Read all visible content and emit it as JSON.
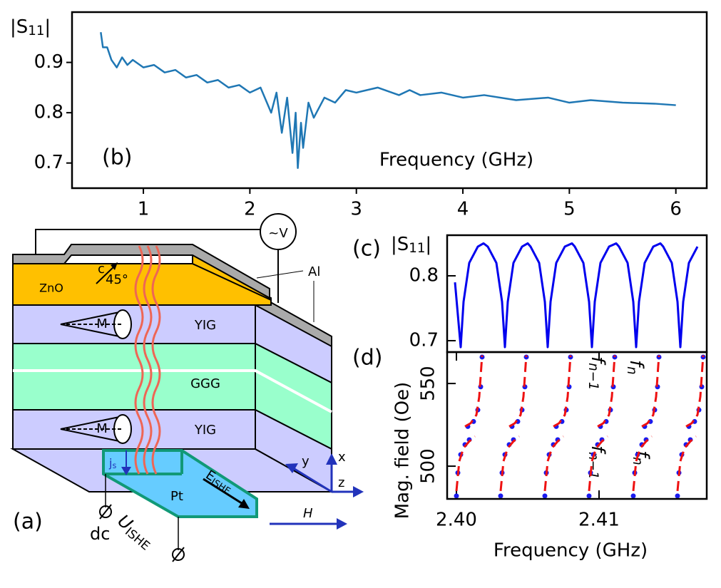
{
  "chart_data": [
    {
      "type": "line",
      "panel_label": "(b)",
      "xlabel": "Frequency (GHz)",
      "ylabel": {
        "text": "|S",
        "sub": "11",
        "tail": "|"
      },
      "color": "#1f77b4",
      "xlim": [
        0.33,
        6.29
      ],
      "ylim": [
        0.65,
        1.0
      ],
      "xticks": [
        1,
        2,
        3,
        4,
        5,
        6
      ],
      "yticks": [
        0.7,
        0.8,
        0.9
      ],
      "x": [
        0.6,
        0.62,
        0.66,
        0.7,
        0.75,
        0.8,
        0.85,
        0.9,
        1.0,
        1.1,
        1.2,
        1.3,
        1.4,
        1.5,
        1.6,
        1.7,
        1.8,
        1.9,
        2.0,
        2.1,
        2.2,
        2.25,
        2.3,
        2.35,
        2.4,
        2.43,
        2.45,
        2.48,
        2.5,
        2.55,
        2.6,
        2.7,
        2.8,
        2.9,
        3.0,
        3.2,
        3.4,
        3.5,
        3.6,
        3.8,
        4.0,
        4.2,
        4.5,
        4.8,
        5.0,
        5.2,
        5.5,
        5.8,
        6.0
      ],
      "values": [
        0.96,
        0.93,
        0.93,
        0.905,
        0.89,
        0.91,
        0.895,
        0.905,
        0.89,
        0.895,
        0.88,
        0.885,
        0.87,
        0.875,
        0.86,
        0.865,
        0.85,
        0.855,
        0.84,
        0.85,
        0.8,
        0.84,
        0.76,
        0.83,
        0.72,
        0.8,
        0.69,
        0.78,
        0.73,
        0.82,
        0.79,
        0.83,
        0.82,
        0.845,
        0.84,
        0.85,
        0.835,
        0.845,
        0.835,
        0.84,
        0.83,
        0.835,
        0.825,
        0.83,
        0.82,
        0.825,
        0.82,
        0.818,
        0.815
      ]
    },
    {
      "type": "line",
      "panel_label": "(c)",
      "ylabel": {
        "text": "|S",
        "sub": "11",
        "tail": "|"
      },
      "color": "#0000ee",
      "xlim": [
        2.39935,
        2.41755
      ],
      "ylim": [
        0.6824,
        0.8626
      ],
      "yticks": [
        0.7,
        0.8
      ],
      "x": [
        2.3999,
        2.4003,
        2.4005,
        2.4009,
        2.4015,
        2.4019,
        2.4022,
        2.4028,
        2.4032,
        2.4034,
        2.4036,
        2.404,
        2.4046,
        2.405,
        2.4052,
        2.4058,
        2.4062,
        2.4064,
        2.4066,
        2.407,
        2.4076,
        2.4081,
        2.4083,
        2.4089,
        2.4093,
        2.4095,
        2.4097,
        2.4101,
        2.4107,
        2.4112,
        2.4114,
        2.412,
        2.4124,
        2.4126,
        2.4128,
        2.4132,
        2.4138,
        2.4143,
        2.4145,
        2.4151,
        2.4155,
        2.4157,
        2.4159,
        2.4163,
        2.4169
      ],
      "values": [
        0.79,
        0.69,
        0.76,
        0.82,
        0.845,
        0.85,
        0.845,
        0.82,
        0.76,
        0.69,
        0.76,
        0.82,
        0.845,
        0.85,
        0.845,
        0.82,
        0.76,
        0.69,
        0.76,
        0.82,
        0.845,
        0.85,
        0.845,
        0.82,
        0.76,
        0.69,
        0.76,
        0.82,
        0.845,
        0.85,
        0.845,
        0.82,
        0.76,
        0.69,
        0.76,
        0.82,
        0.845,
        0.85,
        0.845,
        0.82,
        0.76,
        0.69,
        0.76,
        0.82,
        0.845
      ]
    },
    {
      "type": "scatter",
      "panel_label": "(d)",
      "xlabel": "Frequency (GHz)",
      "ylabel": "Mag. field (Oe)",
      "xlim": [
        2.39935,
        2.41755
      ],
      "ylim": [
        480.2,
        569
      ],
      "xticks": [
        {
          "value": 2.4,
          "label": "2.40"
        },
        2.41
      ],
      "yticks": [
        500,
        550
      ],
      "annotations": [
        {
          "text": "f",
          "sub": "n−1"
        },
        {
          "text": "f",
          "sub": "n"
        },
        {
          "text": "f",
          "sub": "n−1"
        },
        {
          "text": "f",
          "sub": "n"
        }
      ],
      "series": [
        {
          "kind": "scatter",
          "color": "#1a1aee",
          "x": [
            2.4008,
            2.4012,
            2.4015,
            2.4017,
            2.4018,
            2.4,
            2.4001,
            2.4003,
            2.4006,
            2.4009,
            2.4039,
            2.4043,
            2.4046,
            2.4048,
            2.4049,
            2.4031,
            2.4032,
            2.4034,
            2.4037,
            2.404,
            2.407,
            2.4074,
            2.4077,
            2.4079,
            2.408,
            2.4062,
            2.4063,
            2.4065,
            2.4068,
            2.4071,
            2.4101,
            2.4105,
            2.4108,
            2.411,
            2.4111,
            2.4093,
            2.4094,
            2.4096,
            2.4099,
            2.4102,
            2.4132,
            2.4136,
            2.4139,
            2.4141,
            2.4142,
            2.4124,
            2.4125,
            2.4127,
            2.413,
            2.4133,
            2.4163,
            2.4167,
            2.417,
            2.4172,
            2.4173,
            2.4155,
            2.4156,
            2.4158,
            2.4161,
            2.4164
          ],
          "values": [
            524,
            527,
            534,
            548,
            566,
            482,
            496,
            507,
            513,
            516,
            524,
            527,
            534,
            548,
            566,
            482,
            496,
            507,
            513,
            516,
            524,
            527,
            534,
            548,
            566,
            482,
            496,
            507,
            513,
            516,
            524,
            527,
            534,
            548,
            566,
            482,
            496,
            507,
            513,
            516,
            524,
            527,
            534,
            548,
            566,
            482,
            496,
            507,
            513,
            516,
            524,
            527,
            534,
            548,
            566,
            482,
            496,
            507,
            513,
            516
          ]
        },
        {
          "kind": "line",
          "dashed": true,
          "color": "#ee1111",
          "x": [
            2.4006,
            2.401,
            2.4014,
            2.4016,
            2.4018,
            null,
            2.4,
            2.4002,
            2.4005,
            2.4009,
            2.4013,
            null,
            2.4037,
            2.4041,
            2.4045,
            2.4047,
            2.4049,
            null,
            2.4031,
            2.4033,
            2.4036,
            2.404,
            2.4044,
            null,
            2.4068,
            2.4072,
            2.4076,
            2.4078,
            2.408,
            null,
            2.4062,
            2.4064,
            2.4067,
            2.4071,
            2.4075,
            null,
            2.4099,
            2.4103,
            2.4107,
            2.4109,
            2.4111,
            null,
            2.4093,
            2.4095,
            2.4098,
            2.4102,
            2.4106,
            null,
            2.413,
            2.4134,
            2.4138,
            2.414,
            2.4142,
            null,
            2.4124,
            2.4126,
            2.4129,
            2.4133,
            2.4137,
            null,
            2.4161,
            2.4165,
            2.4169,
            2.4171,
            2.4173,
            null,
            2.4155,
            2.4157,
            2.416,
            2.4164,
            2.4168
          ],
          "values": [
            524,
            526,
            531,
            542,
            567,
            null,
            485,
            503,
            511,
            515,
            518,
            null,
            524,
            526,
            531,
            542,
            567,
            null,
            485,
            503,
            511,
            515,
            518,
            null,
            524,
            526,
            531,
            542,
            567,
            null,
            485,
            503,
            511,
            515,
            518,
            null,
            524,
            526,
            531,
            542,
            567,
            null,
            485,
            503,
            511,
            515,
            518,
            null,
            524,
            526,
            531,
            542,
            567,
            null,
            485,
            503,
            511,
            515,
            518,
            null,
            524,
            526,
            531,
            542,
            567,
            null,
            485,
            503,
            511,
            515,
            518
          ]
        }
      ]
    }
  ],
  "diagram": {
    "panel_label": "(a)",
    "voltmeter": "~V",
    "al": "Al",
    "zno": "ZnO",
    "c_axis": "c̄",
    "angle": "45°",
    "layers": [
      "YIG",
      "GGG",
      "YIG"
    ],
    "magnetization": [
      "M",
      "M"
    ],
    "js": {
      "text": "j",
      "sub": "s"
    },
    "pt": "Pt",
    "e_ishe": {
      "text": "E",
      "sub": "ISHE"
    },
    "axes": {
      "x": "x",
      "y": "y",
      "z": "z"
    },
    "field": "H",
    "dc": "dc",
    "u_ishe": {
      "text": "U",
      "sub": "ISHE"
    }
  }
}
